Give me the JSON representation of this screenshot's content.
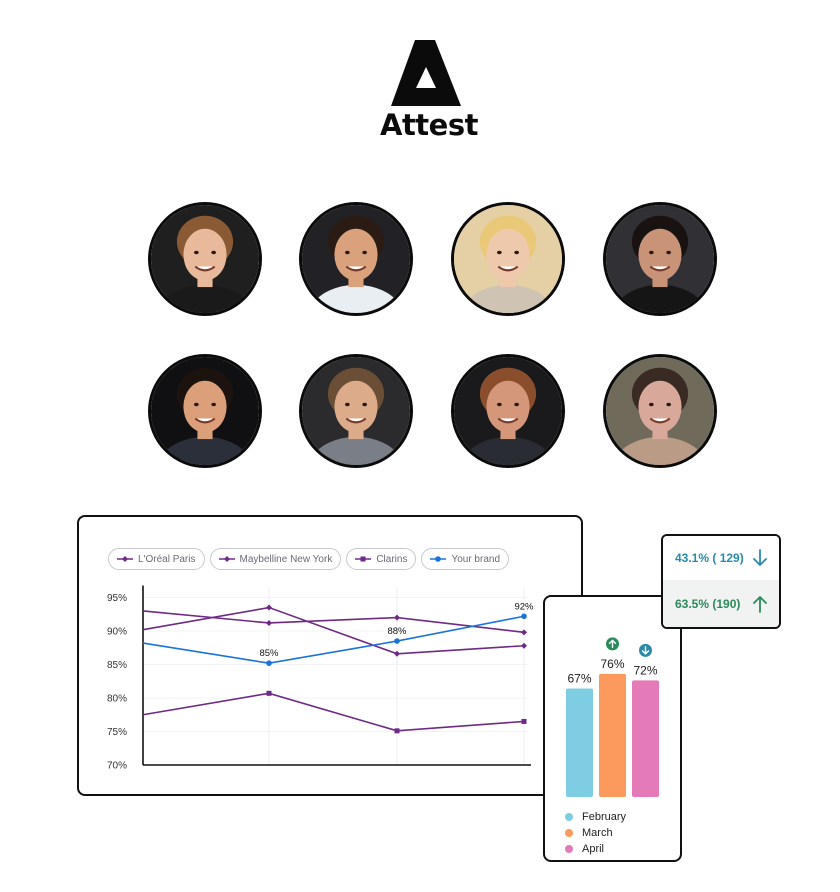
{
  "brand": {
    "name": "Attest",
    "color": "#0b0b0b"
  },
  "team": {
    "avatars": [
      {
        "name": "person-1",
        "bg": "#1f1f1f",
        "skin": "#e8b99a",
        "hair": "#8a5a34",
        "shirt": "#1a1a1a"
      },
      {
        "name": "person-2",
        "bg": "#222226",
        "skin": "#d9a27c",
        "hair": "#2a1c14",
        "shirt": "#e9eef2"
      },
      {
        "name": "person-3",
        "bg": "#e5cfa5",
        "skin": "#efc9ab",
        "hair": "#e9c877",
        "shirt": "#cfc4b4"
      },
      {
        "name": "person-4",
        "bg": "#303035",
        "skin": "#c99377",
        "hair": "#181210",
        "shirt": "#151515"
      },
      {
        "name": "person-5",
        "bg": "#101012",
        "skin": "#dba07a",
        "hair": "#1c130e",
        "shirt": "#2b2f3a"
      },
      {
        "name": "person-6",
        "bg": "#2b2b2e",
        "skin": "#dcab89",
        "hair": "#6a4e36",
        "shirt": "#7a7f87"
      },
      {
        "name": "person-7",
        "bg": "#1a1a1c",
        "skin": "#d5977a",
        "hair": "#8a4e2c",
        "shirt": "#2a2c34"
      },
      {
        "name": "person-8",
        "bg": "#6f6a5a",
        "skin": "#d8a99a",
        "hair": "#3a2a24",
        "shirt": "#b99b86"
      }
    ]
  },
  "colors": {
    "purple": "#6e2a86",
    "blue": "#1a73d9",
    "up": "#2b8a5a",
    "down": "#2a8aa8"
  },
  "line_legend": [
    {
      "label": "L'Oréal Paris",
      "marker": "diamond",
      "color": "#6e2a86"
    },
    {
      "label": "Maybelline New York",
      "marker": "diamond",
      "color": "#6e2a86"
    },
    {
      "label": "Clarins",
      "marker": "square",
      "color": "#6e2a86"
    },
    {
      "label": "Your brand",
      "marker": "circle",
      "color": "#1a73d9"
    }
  ],
  "deltas": [
    {
      "text": "43.1% ( 129)",
      "direction": "down",
      "color": "#2a8aa8"
    },
    {
      "text": "63.5% (190)",
      "direction": "up",
      "color": "#2b8a5a"
    }
  ],
  "chart_data": [
    {
      "type": "line",
      "x": [
        1,
        2,
        3,
        4
      ],
      "ylim": [
        70,
        95
      ],
      "yticks": [
        "95%",
        "90%",
        "85%",
        "80%",
        "75%",
        "70%"
      ],
      "grid": true,
      "series": [
        {
          "name": "L'Oréal Paris",
          "values": [
            93,
            91.2,
            92,
            89.8
          ],
          "marker": "diamond",
          "color": "#6e2a86"
        },
        {
          "name": "Maybelline New York",
          "values": [
            90.2,
            93.5,
            86.6,
            87.8
          ],
          "marker": "diamond",
          "color": "#6e2a86"
        },
        {
          "name": "Clarins",
          "values": [
            77.5,
            80.7,
            75.1,
            76.5
          ],
          "marker": "square",
          "color": "#6e2a86"
        },
        {
          "name": "Your brand",
          "values": [
            88.2,
            85.2,
            88.5,
            92.2
          ],
          "marker": "circle",
          "color": "#1a73d9"
        }
      ],
      "data_labels": [
        {
          "series": "Your brand",
          "index": 1,
          "text": "85%"
        },
        {
          "series": "Your brand",
          "index": 2,
          "text": "88%"
        },
        {
          "series": "Your brand",
          "index": 3,
          "text": "92%"
        }
      ]
    },
    {
      "type": "bar",
      "categories": [
        "February",
        "March",
        "April"
      ],
      "values": [
        67,
        76,
        72
      ],
      "labels": [
        "67%",
        "76%",
        "72%"
      ],
      "colors": [
        "#7ecde3",
        "#fb9a5c",
        "#e47ab8"
      ],
      "trend": [
        null,
        "up",
        "down"
      ]
    }
  ]
}
